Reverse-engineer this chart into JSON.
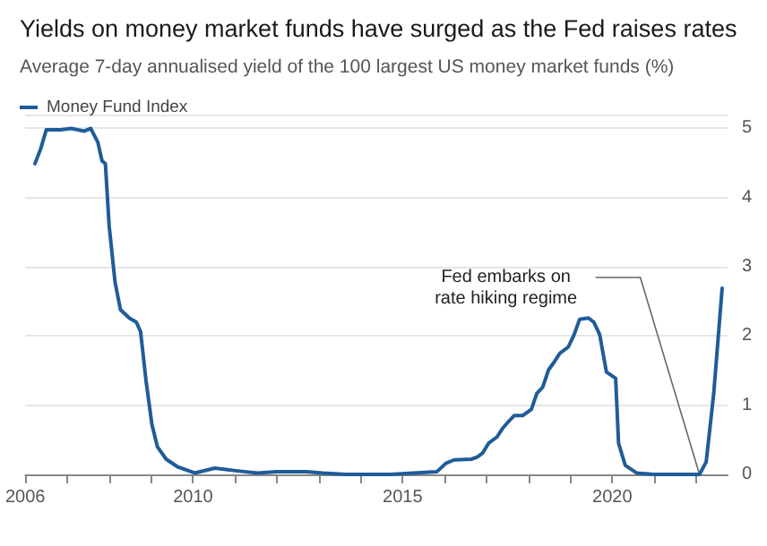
{
  "chart_data": {
    "type": "line",
    "title": "Yields on money market funds have surged as the Fed raises rates",
    "subtitle": "Average 7-day annualised yield of the 100 largest US money market funds (%)",
    "series": [
      {
        "name": "Money Fund Index",
        "color": "#1f5c99",
        "x": [
          2006.23,
          2006.37,
          2006.5,
          2006.84,
          2007.1,
          2007.4,
          2007.56,
          2007.73,
          2007.83,
          2007.91,
          2008.0,
          2008.14,
          2008.27,
          2008.48,
          2008.65,
          2008.75,
          2008.88,
          2009.02,
          2009.15,
          2009.36,
          2009.63,
          2010.04,
          2010.52,
          2011.06,
          2011.54,
          2012.0,
          2012.7,
          2013.1,
          2013.65,
          2014.7,
          2015.82,
          2016.03,
          2016.23,
          2016.64,
          2016.78,
          2016.91,
          2017.05,
          2017.25,
          2017.39,
          2017.52,
          2017.66,
          2017.86,
          2018.07,
          2018.2,
          2018.34,
          2018.48,
          2018.61,
          2018.75,
          2018.95,
          2019.09,
          2019.22,
          2019.43,
          2019.56,
          2019.7,
          2019.86,
          2020.08,
          2020.15,
          2020.31,
          2020.58,
          2020.99,
          2022.08,
          2022.24,
          2022.42,
          2022.62
        ],
        "values": [
          4.49,
          4.71,
          4.98,
          4.98,
          5.0,
          4.96,
          5.0,
          4.8,
          4.53,
          4.49,
          3.59,
          2.78,
          2.38,
          2.26,
          2.2,
          2.06,
          1.35,
          0.72,
          0.4,
          0.22,
          0.11,
          0.02,
          0.09,
          0.05,
          0.02,
          0.04,
          0.04,
          0.02,
          0.0,
          0.0,
          0.04,
          0.16,
          0.21,
          0.22,
          0.25,
          0.31,
          0.45,
          0.54,
          0.67,
          0.76,
          0.85,
          0.85,
          0.94,
          1.17,
          1.26,
          1.51,
          1.62,
          1.75,
          1.84,
          2.02,
          2.24,
          2.26,
          2.2,
          2.02,
          1.48,
          1.39,
          0.45,
          0.13,
          0.02,
          0.0,
          0.0,
          0.18,
          1.17,
          2.69
        ]
      }
    ],
    "xlim": [
      2006,
      2022.75
    ],
    "xticks": [
      2006,
      {
        "value": 2007,
        "label": null
      },
      {
        "value": 2008,
        "label": null
      },
      {
        "value": 2009,
        "label": null
      },
      2010,
      {
        "value": 2011,
        "label": null
      },
      {
        "value": 2012,
        "label": null
      },
      {
        "value": 2013,
        "label": null
      },
      {
        "value": 2014,
        "label": null
      },
      2015,
      {
        "value": 2016,
        "label": null
      },
      {
        "value": 2017,
        "label": null
      },
      {
        "value": 2018,
        "label": null
      },
      {
        "value": 2019,
        "label": null
      },
      2020,
      {
        "value": 2021,
        "label": null
      },
      {
        "value": 2022,
        "label": null
      }
    ],
    "ylim": [
      0,
      5.2
    ],
    "yticks": [
      0,
      1,
      2,
      3,
      4,
      5
    ],
    "grid": "y",
    "legend": "top left",
    "marker": "none",
    "line_style": "solid",
    "annotations": [
      {
        "text": "Fed embarks on\nrate hiking regime",
        "x": 2022.08,
        "y": 0
      }
    ]
  }
}
